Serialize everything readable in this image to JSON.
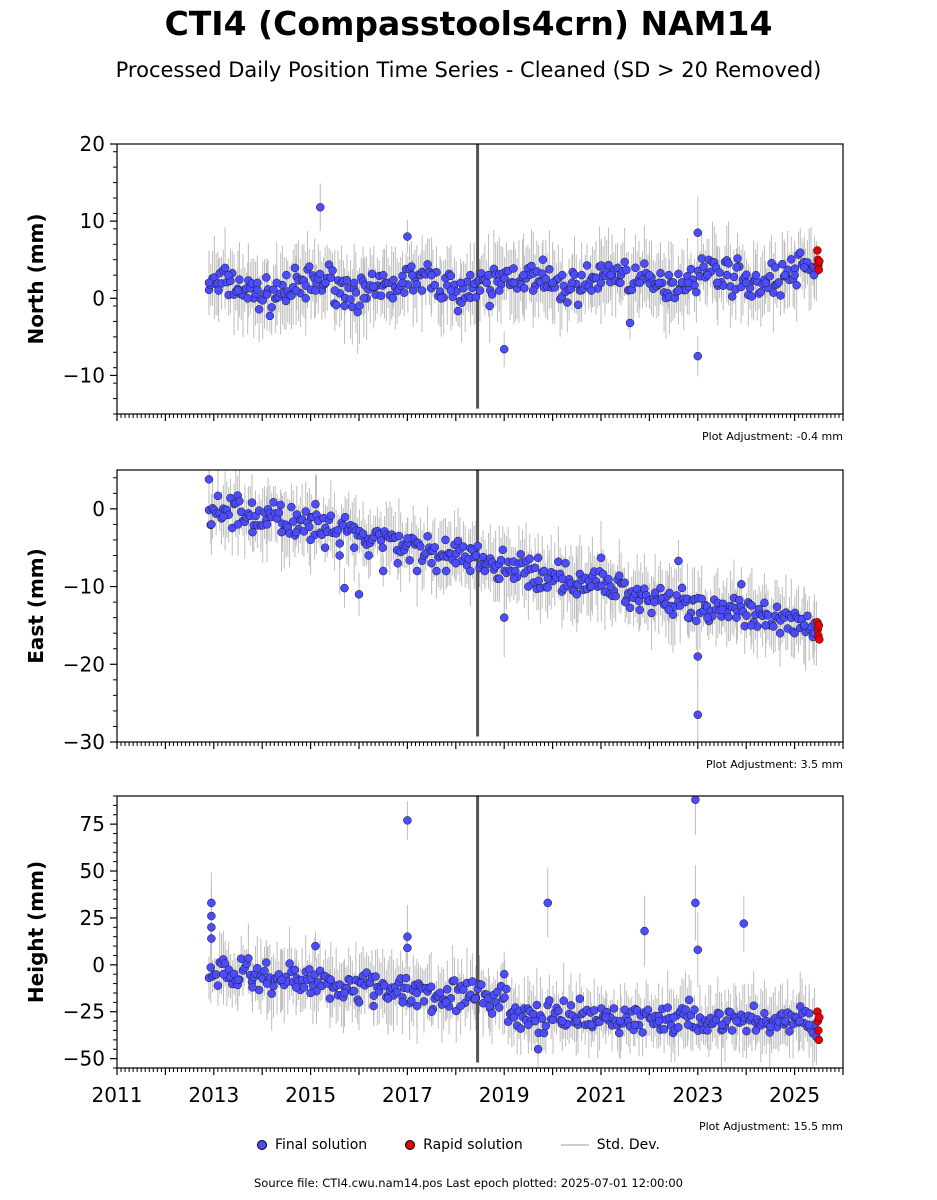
{
  "title": "CTI4 (Compasstools4crn) NAM14",
  "subtitle": "Processed Daily Position Time Series - Cleaned (SD > 20 Removed)",
  "legend": {
    "final": "Final solution",
    "rapid": "Rapid solution",
    "std": "Std. Dev."
  },
  "footer": "Source file: CTI4.cwu.nam14.pos  Last epoch plotted: 2025-07-01 12:00:00",
  "colors": {
    "final": "#4b4bff",
    "rapid": "#e60000",
    "std": "#bdbdbd",
    "dense": "#555555"
  },
  "chart_data": [
    {
      "type": "scatter",
      "ylabel": "North (mm)",
      "xlim": [
        2011,
        2026
      ],
      "ylim": [
        -15,
        20
      ],
      "yticks": [
        -10,
        0,
        10,
        20
      ],
      "yticklabels": [
        "−10",
        "0",
        "10",
        "20"
      ],
      "adjustment": "Plot Adjustment: -0.4 mm",
      "grid": false,
      "series": [
        {
          "name": "Final solution",
          "points": [
            [
              2012.9,
              2
            ],
            [
              2013.1,
              1
            ],
            [
              2013.3,
              3
            ],
            [
              2013.5,
              1
            ],
            [
              2013.7,
              0
            ],
            [
              2013.9,
              2
            ],
            [
              2014.1,
              0.5
            ],
            [
              2014.3,
              2
            ],
            [
              2014.5,
              3
            ],
            [
              2014.7,
              1
            ],
            [
              2014.9,
              0
            ],
            [
              2015.1,
              1
            ],
            [
              2015.2,
              11.8
            ],
            [
              2015.3,
              2
            ],
            [
              2015.5,
              1
            ],
            [
              2015.7,
              -1
            ],
            [
              2015.9,
              2
            ],
            [
              2016.1,
              0
            ],
            [
              2016.3,
              1.5
            ],
            [
              2016.5,
              3
            ],
            [
              2016.7,
              0
            ],
            [
              2016.9,
              2
            ],
            [
              2017.0,
              8
            ],
            [
              2017.1,
              3
            ],
            [
              2017.3,
              1
            ],
            [
              2017.5,
              3
            ],
            [
              2017.7,
              0
            ],
            [
              2017.9,
              1
            ],
            [
              2018.1,
              2
            ],
            [
              2018.3,
              3
            ],
            [
              2018.5,
              1
            ],
            [
              2018.7,
              -1
            ],
            [
              2018.9,
              1
            ],
            [
              2019.0,
              -6.6
            ],
            [
              2019.2,
              2
            ],
            [
              2019.4,
              3
            ],
            [
              2019.6,
              1
            ],
            [
              2019.8,
              5
            ],
            [
              2020.0,
              2
            ],
            [
              2020.2,
              3
            ],
            [
              2020.4,
              2
            ],
            [
              2020.6,
              3
            ],
            [
              2020.8,
              1
            ],
            [
              2021.0,
              2
            ],
            [
              2021.2,
              3
            ],
            [
              2021.4,
              2
            ],
            [
              2021.6,
              -3.2
            ],
            [
              2021.8,
              2
            ],
            [
              2022.0,
              3
            ],
            [
              2022.2,
              2
            ],
            [
              2022.4,
              3
            ],
            [
              2022.6,
              1
            ],
            [
              2022.8,
              2
            ],
            [
              2023.0,
              8.5
            ],
            [
              2023.0,
              -7.5
            ],
            [
              2023.2,
              3
            ],
            [
              2023.4,
              2
            ],
            [
              2023.6,
              3
            ],
            [
              2023.8,
              4
            ],
            [
              2024.0,
              2
            ],
            [
              2024.2,
              3
            ],
            [
              2024.4,
              2
            ],
            [
              2024.6,
              4
            ],
            [
              2024.8,
              3
            ],
            [
              2025.0,
              3
            ],
            [
              2025.2,
              4
            ],
            [
              2025.4,
              3
            ]
          ],
          "range": [
            2012.9,
            2025.45
          ],
          "base": [
            1.0,
            3.0
          ],
          "spread": 1.6
        },
        {
          "name": "Rapid solution",
          "points": [
            [
              2025.47,
              6.2
            ],
            [
              2025.48,
              5.0
            ],
            [
              2025.49,
              4.3
            ],
            [
              2025.5,
              3.7
            ],
            [
              2025.51,
              4.8
            ]
          ]
        }
      ]
    },
    {
      "type": "scatter",
      "ylabel": "East (mm)",
      "xlim": [
        2011,
        2026
      ],
      "ylim": [
        -30,
        5
      ],
      "yticks": [
        -30,
        -20,
        -10,
        0
      ],
      "yticklabels": [
        "−30",
        "−20",
        "−10",
        "0"
      ],
      "adjustment": "Plot Adjustment: 3.5 mm",
      "grid": false,
      "series": [
        {
          "name": "Final solution",
          "points": [
            [
              2012.9,
              3.8
            ],
            [
              2012.95,
              -2
            ],
            [
              2013.2,
              -1
            ],
            [
              2013.5,
              -2
            ],
            [
              2013.8,
              -3
            ],
            [
              2014.1,
              -2
            ],
            [
              2014.4,
              -3
            ],
            [
              2014.7,
              -3
            ],
            [
              2015.0,
              -4
            ],
            [
              2015.1,
              0.6
            ],
            [
              2015.3,
              -5
            ],
            [
              2015.6,
              -6
            ],
            [
              2015.7,
              -10.2
            ],
            [
              2015.9,
              -5
            ],
            [
              2016.0,
              -11
            ],
            [
              2016.2,
              -6
            ],
            [
              2016.5,
              -8
            ],
            [
              2016.8,
              -7
            ],
            [
              2017.0,
              -3.8
            ],
            [
              2017.2,
              -8
            ],
            [
              2017.5,
              -7
            ],
            [
              2017.8,
              -8
            ],
            [
              2018.0,
              -7
            ],
            [
              2018.3,
              -8
            ],
            [
              2018.6,
              -8
            ],
            [
              2018.9,
              -9
            ],
            [
              2019.0,
              -14
            ],
            [
              2019.2,
              -9
            ],
            [
              2019.5,
              -10
            ],
            [
              2019.7,
              -6.3
            ],
            [
              2019.9,
              -9
            ],
            [
              2020.2,
              -9
            ],
            [
              2020.5,
              -11
            ],
            [
              2020.8,
              -10
            ],
            [
              2021.0,
              -6.3
            ],
            [
              2021.2,
              -10
            ],
            [
              2021.5,
              -12
            ],
            [
              2021.8,
              -13
            ],
            [
              2022.1,
              -12
            ],
            [
              2022.4,
              -13
            ],
            [
              2022.6,
              -6.7
            ],
            [
              2022.8,
              -14
            ],
            [
              2023.0,
              -26.5
            ],
            [
              2023.0,
              -19
            ],
            [
              2023.2,
              -14
            ],
            [
              2023.5,
              -13
            ],
            [
              2023.8,
              -14
            ],
            [
              2023.9,
              -9.7
            ],
            [
              2024.1,
              -15
            ],
            [
              2024.4,
              -15
            ],
            [
              2024.7,
              -16
            ],
            [
              2025.0,
              -16
            ],
            [
              2025.2,
              -15
            ],
            [
              2025.4,
              -16
            ]
          ],
          "trend": [
            [
              2012.9,
              0.5
            ],
            [
              2025.45,
              -15.5
            ]
          ],
          "spread": 1.5,
          "range": [
            2012.9,
            2025.45
          ]
        },
        {
          "name": "Rapid solution",
          "points": [
            [
              2025.47,
              -14.6
            ],
            [
              2025.48,
              -15.5
            ],
            [
              2025.49,
              -16.3
            ],
            [
              2025.5,
              -15.0
            ],
            [
              2025.51,
              -16.8
            ]
          ]
        }
      ]
    },
    {
      "type": "scatter",
      "ylabel": "Height (mm)",
      "xlim": [
        2011,
        2026
      ],
      "ylim": [
        -55,
        90
      ],
      "yticks": [
        -50,
        -25,
        0,
        25,
        50,
        75
      ],
      "yticklabels": [
        "−50",
        "−25",
        "0",
        "25",
        "50",
        "75"
      ],
      "adjustment": "Plot Adjustment: 15.5 mm",
      "grid": false,
      "series": [
        {
          "name": "Final solution",
          "points": [
            [
              2012.95,
              33
            ],
            [
              2012.95,
              26
            ],
            [
              2012.95,
              20
            ],
            [
              2012.95,
              14
            ],
            [
              2013.2,
              -5
            ],
            [
              2013.5,
              -8
            ],
            [
              2013.8,
              -12
            ],
            [
              2014.1,
              -10
            ],
            [
              2014.4,
              -8
            ],
            [
              2014.7,
              -12
            ],
            [
              2015.0,
              -15
            ],
            [
              2015.1,
              10
            ],
            [
              2015.4,
              -18
            ],
            [
              2015.7,
              -15
            ],
            [
              2016.0,
              -20
            ],
            [
              2016.3,
              -22
            ],
            [
              2016.6,
              -18
            ],
            [
              2016.9,
              -20
            ],
            [
              2017.0,
              77
            ],
            [
              2017.0,
              15
            ],
            [
              2017.0,
              9
            ],
            [
              2017.2,
              -22
            ],
            [
              2017.5,
              -25
            ],
            [
              2017.8,
              -20
            ],
            [
              2018.1,
              -22
            ],
            [
              2018.4,
              -18
            ],
            [
              2018.7,
              -22
            ],
            [
              2019.0,
              -5
            ],
            [
              2019.2,
              -28
            ],
            [
              2019.5,
              -32
            ],
            [
              2019.7,
              -45
            ],
            [
              2019.9,
              33
            ],
            [
              2020.2,
              -30
            ],
            [
              2020.5,
              -30
            ],
            [
              2020.8,
              -32
            ],
            [
              2021.1,
              -28
            ],
            [
              2021.4,
              -30
            ],
            [
              2021.7,
              -32
            ],
            [
              2021.9,
              18
            ],
            [
              2022.2,
              -30
            ],
            [
              2022.5,
              -28
            ],
            [
              2022.8,
              -32
            ],
            [
              2022.95,
              88
            ],
            [
              2022.95,
              33
            ],
            [
              2023.0,
              8
            ],
            [
              2023.2,
              -35
            ],
            [
              2023.5,
              -32
            ],
            [
              2023.8,
              -30
            ],
            [
              2023.95,
              22
            ],
            [
              2024.2,
              -35
            ],
            [
              2024.5,
              -33
            ],
            [
              2024.8,
              -30
            ],
            [
              2025.1,
              -30
            ],
            [
              2025.3,
              -32
            ]
          ],
          "trend": [
            [
              2012.9,
              -3
            ],
            [
              2019.05,
              -18
            ],
            [
              2019.1,
              -28
            ],
            [
              2025.45,
              -30
            ]
          ],
          "spread": 6,
          "range": [
            2012.9,
            2025.45
          ]
        },
        {
          "name": "Rapid solution",
          "points": [
            [
              2025.47,
              -25
            ],
            [
              2025.48,
              -30
            ],
            [
              2025.49,
              -35
            ],
            [
              2025.5,
              -40
            ],
            [
              2025.51,
              -28
            ]
          ]
        }
      ]
    }
  ],
  "xaxis": {
    "ticks": [
      2011,
      2013,
      2015,
      2017,
      2019,
      2021,
      2023,
      2025
    ],
    "labels": [
      "2011",
      "2013",
      "2015",
      "2017",
      "2019",
      "2021",
      "2023",
      "2025"
    ]
  }
}
